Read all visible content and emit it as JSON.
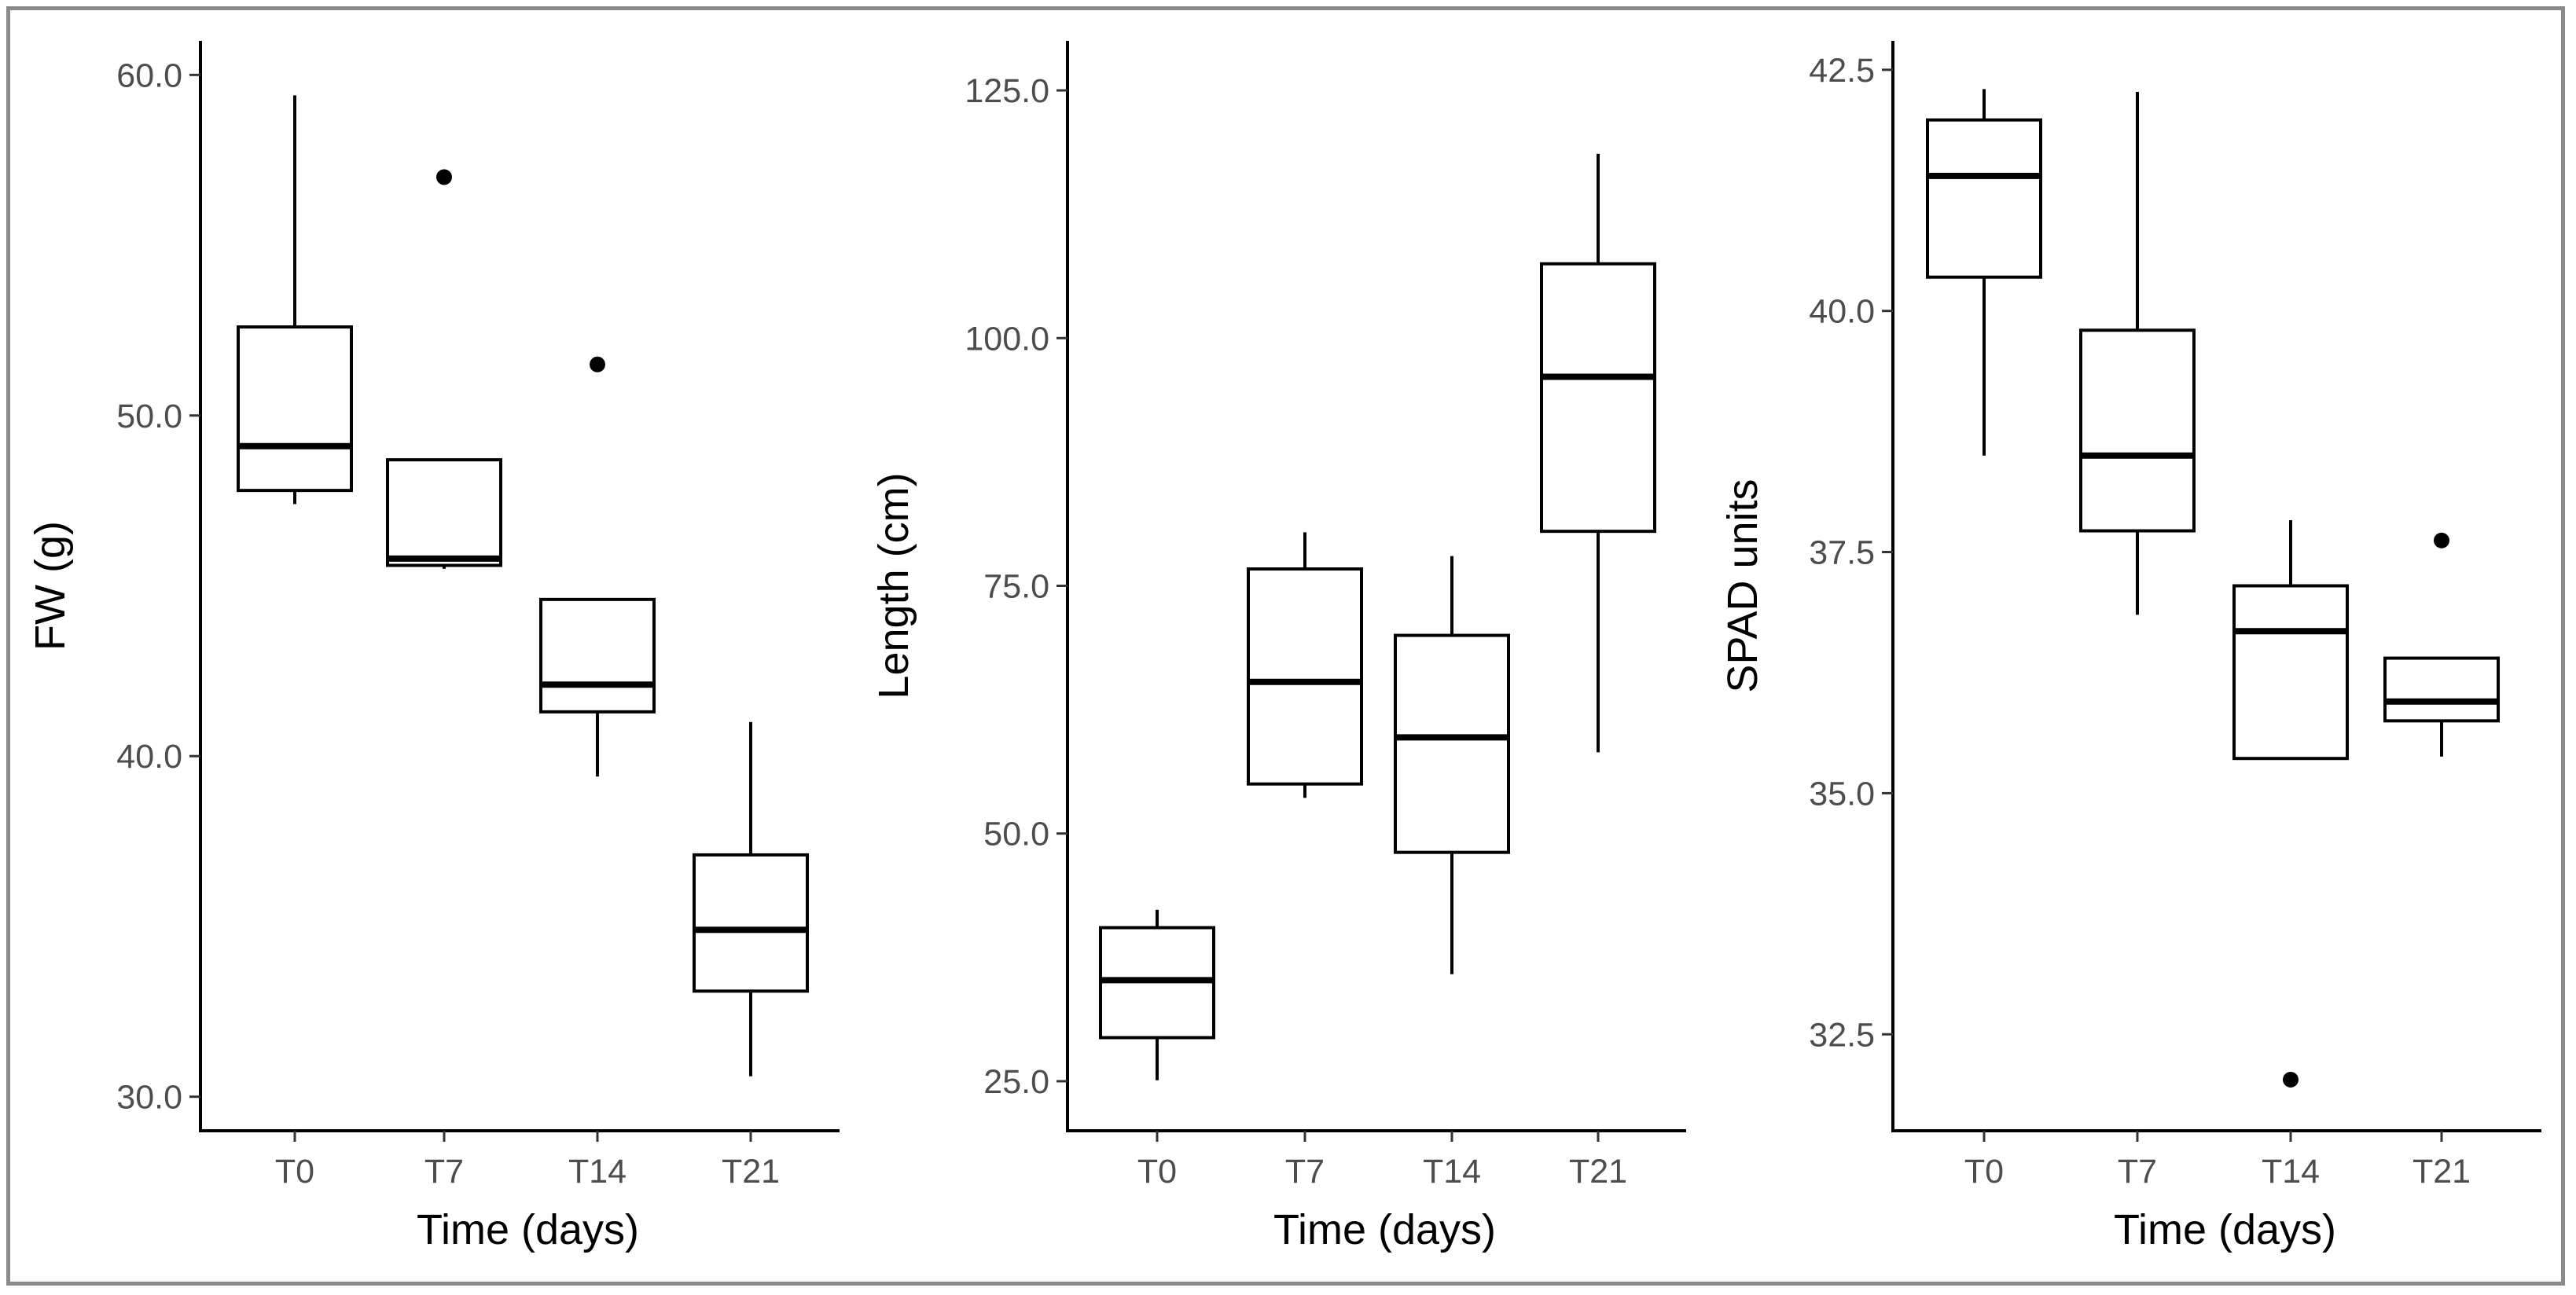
{
  "chart_data": [
    {
      "type": "boxplot",
      "title": "",
      "xlabel": "Time (days)",
      "ylabel": "FW (g)",
      "categories": [
        "T0",
        "T7",
        "T14",
        "T21"
      ],
      "ylim": [
        29.0,
        61.0
      ],
      "yticks": [
        30.0,
        40.0,
        50.0,
        60.0
      ],
      "ytick_labels": [
        "30.0",
        "40.0",
        "50.0",
        "60.0"
      ],
      "boxes": [
        {
          "category": "T0",
          "min": 47.4,
          "q1": 47.8,
          "median": 49.1,
          "q3": 52.6,
          "max": 59.4,
          "outliers": []
        },
        {
          "category": "T7",
          "min": 45.5,
          "q1": 45.6,
          "median": 45.8,
          "q3": 48.7,
          "max": 48.7,
          "outliers": [
            57.0
          ]
        },
        {
          "category": "T14",
          "min": 39.4,
          "q1": 41.3,
          "median": 42.1,
          "q3": 44.6,
          "max": 44.6,
          "outliers": [
            51.5
          ]
        },
        {
          "category": "T21",
          "min": 30.6,
          "q1": 33.1,
          "median": 34.9,
          "q3": 37.1,
          "max": 41.0,
          "outliers": []
        }
      ]
    },
    {
      "type": "boxplot",
      "title": "",
      "xlabel": "Time (days)",
      "ylabel": "Length (cm)",
      "categories": [
        "T0",
        "T7",
        "T14",
        "T21"
      ],
      "ylim": [
        20.0,
        130.0
      ],
      "yticks": [
        25.0,
        50.0,
        75.0,
        100.0,
        125.0
      ],
      "ytick_labels": [
        "25.0",
        "50.0",
        "75.0",
        "100.0",
        "125.0"
      ],
      "boxes": [
        {
          "category": "T0",
          "min": 25.1,
          "q1": 29.4,
          "median": 35.2,
          "q3": 40.5,
          "max": 42.3,
          "outliers": []
        },
        {
          "category": "T7",
          "min": 53.6,
          "q1": 55.0,
          "median": 65.3,
          "q3": 76.7,
          "max": 80.4,
          "outliers": []
        },
        {
          "category": "T14",
          "min": 35.8,
          "q1": 48.1,
          "median": 59.7,
          "q3": 70.0,
          "max": 78.0,
          "outliers": []
        },
        {
          "category": "T21",
          "min": 58.2,
          "q1": 80.5,
          "median": 96.1,
          "q3": 107.5,
          "max": 118.6,
          "outliers": []
        }
      ]
    },
    {
      "type": "boxplot",
      "title": "",
      "xlabel": "Time (days)",
      "ylabel": "SPAD units",
      "categories": [
        "T0",
        "T7",
        "T14",
        "T21"
      ],
      "ylim": [
        31.5,
        42.8
      ],
      "yticks": [
        32.5,
        35.0,
        37.5,
        40.0,
        42.5
      ],
      "ytick_labels": [
        "32.5",
        "35.0",
        "37.5",
        "40.0",
        "42.5"
      ],
      "boxes": [
        {
          "category": "T0",
          "min": 38.5,
          "q1": 40.35,
          "median": 41.4,
          "q3": 41.98,
          "max": 42.3,
          "outliers": []
        },
        {
          "category": "T7",
          "min": 36.85,
          "q1": 37.72,
          "median": 38.5,
          "q3": 39.8,
          "max": 42.27,
          "outliers": []
        },
        {
          "category": "T14",
          "min": 35.36,
          "q1": 35.36,
          "median": 36.68,
          "q3": 37.15,
          "max": 37.83,
          "outliers": [
            32.03
          ]
        },
        {
          "category": "T21",
          "min": 35.38,
          "q1": 35.75,
          "median": 35.95,
          "q3": 36.4,
          "max": 36.4,
          "outliers": [
            37.62
          ]
        }
      ]
    }
  ]
}
